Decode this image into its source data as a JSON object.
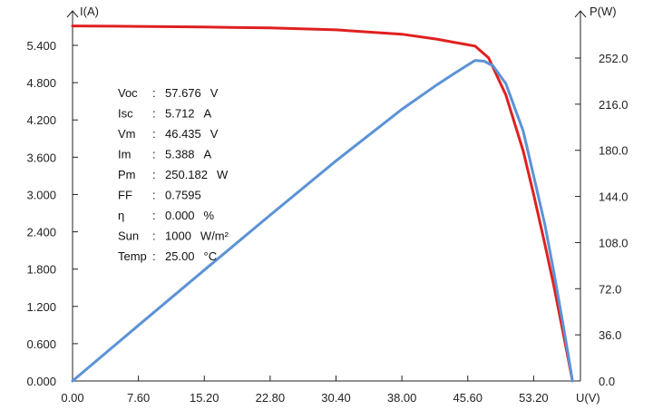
{
  "chart_data": {
    "type": "line",
    "title": "",
    "xlabel": "U(V)",
    "ylabel_left": "I(A)",
    "ylabel_right": "P(W)",
    "xlim": [
      0,
      60.8
    ],
    "ylim_left": [
      0,
      6.0
    ],
    "ylim_right": [
      0,
      288.0
    ],
    "x_ticks": [
      "0.00",
      "7.60",
      "15.20",
      "22.80",
      "30.40",
      "38.00",
      "45.60",
      "53.20"
    ],
    "y_ticks_left": [
      "0.000",
      "0.600",
      "1.200",
      "1.800",
      "2.400",
      "3.000",
      "3.600",
      "4.200",
      "4.800",
      "5.400"
    ],
    "y_ticks_right": [
      "0.0",
      "36.0",
      "72.0",
      "108.0",
      "144.0",
      "180.0",
      "216.0",
      "252.0"
    ],
    "series": [
      {
        "color": "#e02020",
        "axis": "left",
        "x": [
          0.0,
          7.6,
          15.2,
          22.8,
          30.4,
          38.0,
          42.0,
          44.0,
          46.435,
          48.0,
          50.0,
          52.0,
          53.2,
          54.5,
          55.5,
          56.5,
          57.2,
          57.676
        ],
        "y": [
          5.712,
          5.705,
          5.695,
          5.68,
          5.65,
          5.58,
          5.5,
          5.45,
          5.388,
          5.2,
          4.6,
          3.7,
          3.0,
          2.2,
          1.55,
          0.85,
          0.35,
          0.0
        ]
      },
      {
        "color": "#5b93d6",
        "axis": "right",
        "x": [
          0.0,
          7.6,
          15.2,
          22.8,
          30.4,
          38.0,
          42.0,
          44.0,
          46.435,
          47.5,
          48.5,
          50.0,
          52.0,
          53.2,
          54.5,
          55.5,
          56.5,
          57.2,
          57.676
        ],
        "y": [
          0.0,
          43.4,
          86.6,
          129.5,
          171.8,
          212.0,
          231.0,
          239.8,
          250.182,
          249.5,
          246.0,
          232.0,
          195.0,
          160.0,
          122.0,
          86.0,
          48.0,
          20.0,
          0.0
        ]
      }
    ],
    "annotations": [
      {
        "key": "Voc",
        "sep": ":",
        "value": "57.676",
        "unit": "V"
      },
      {
        "key": "Isc",
        "sep": ":",
        "value": "5.712",
        "unit": "A"
      },
      {
        "key": "Vm",
        "sep": ":",
        "value": "46.435",
        "unit": "V"
      },
      {
        "key": "Im",
        "sep": ":",
        "value": "5.388",
        "unit": "A"
      },
      {
        "key": "Pm",
        "sep": ":",
        "value": "250.182",
        "unit": "W"
      },
      {
        "key": "FF",
        "sep": ":",
        "value": "0.7595",
        "unit": ""
      },
      {
        "key": "η",
        "sep": ":",
        "value": "0.000",
        "unit": "%"
      },
      {
        "key": "Sun",
        "sep": ":",
        "value": "1000",
        "unit": "W/m²"
      },
      {
        "key": "Temp",
        "sep": ":",
        "value": "25.00",
        "unit": "°C"
      }
    ],
    "grid": false,
    "legend": "none"
  }
}
